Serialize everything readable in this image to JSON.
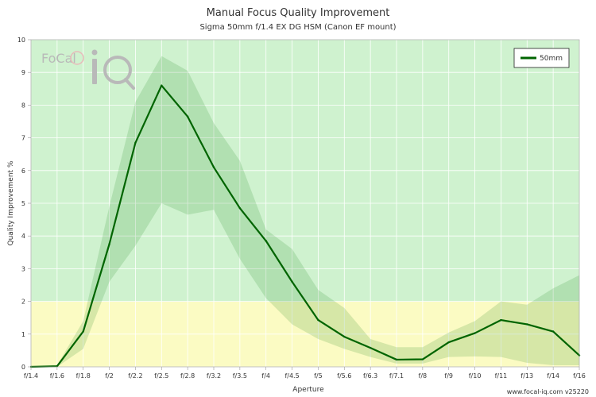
{
  "chart_data": {
    "type": "line",
    "title": "Manual Focus Quality Improvement",
    "subtitle": "Sigma 50mm f/1.4 EX DG HSM (Canon EF mount)",
    "xlabel": "Aperture",
    "ylabel": "Quality Improvement %",
    "ylim": [
      0,
      10
    ],
    "yticks": [
      "0",
      "1",
      "2",
      "3",
      "4",
      "5",
      "6",
      "7",
      "8",
      "9",
      "10"
    ],
    "categories": [
      "f/1.4",
      "f/1.6",
      "f/1.8",
      "f/2",
      "f/2.2",
      "f/2.5",
      "f/2.8",
      "f/3.2",
      "f/3.5",
      "f/4",
      "f/4.5",
      "f/5",
      "f/5.6",
      "f/6.3",
      "f/7.1",
      "f/8",
      "f/9",
      "f/10",
      "f/11",
      "f/13",
      "f/14",
      "f/16"
    ],
    "zones": [
      {
        "name": "green-zone",
        "from": 2,
        "to": 10,
        "color": "#cff2cf"
      },
      {
        "name": "yellow-zone",
        "from": 0,
        "to": 2,
        "color": "#fbfbc3"
      }
    ],
    "series": [
      {
        "name": "50mm",
        "color": "#006400",
        "values": [
          0,
          0.02,
          1.08,
          3.75,
          6.85,
          8.6,
          7.65,
          6.1,
          4.85,
          3.85,
          2.6,
          1.43,
          0.92,
          0.58,
          0.22,
          0.23,
          0.75,
          1.03,
          1.43,
          1.3,
          1.08,
          0.35
        ],
        "band_upper": [
          0,
          0.05,
          1.4,
          4.9,
          8.1,
          9.5,
          9.05,
          7.45,
          6.3,
          4.2,
          3.6,
          2.35,
          1.8,
          0.85,
          0.6,
          0.6,
          1.05,
          1.4,
          2.0,
          1.9,
          2.4,
          2.8
        ],
        "band_lower": [
          0,
          0,
          0.55,
          2.6,
          3.7,
          5.0,
          4.65,
          4.8,
          3.3,
          2.1,
          1.3,
          0.85,
          0.55,
          0.3,
          0.1,
          0.1,
          0.3,
          0.32,
          0.3,
          0.12,
          0.05,
          0.05
        ]
      }
    ],
    "legend": {
      "position": "top-right",
      "entries": [
        "50mm"
      ]
    },
    "grid": true
  },
  "watermark": "www.focal-iq.com  v25220",
  "logo": {
    "text": "FoCal iQ"
  }
}
